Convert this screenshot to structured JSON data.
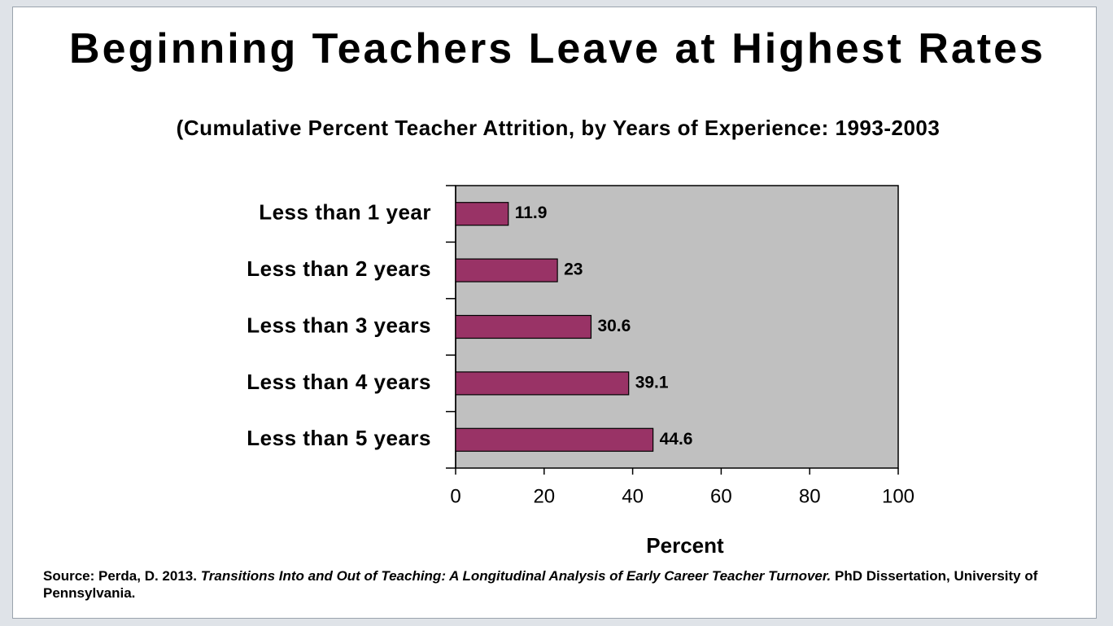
{
  "chart_data": {
    "type": "bar",
    "orientation": "horizontal",
    "title": "Beginning Teachers Leave at Highest Rates",
    "subtitle": "(Cumulative Percent Teacher Attrition, by Years of Experience: 1993-2003",
    "categories": [
      "Less than 1 year",
      "Less than 2 years",
      "Less than 3 years",
      "Less than 4 years",
      "Less than 5 years"
    ],
    "values": [
      11.9,
      23,
      30.6,
      39.1,
      44.6
    ],
    "color": "#993366",
    "plot_background": "#c0c0c0",
    "xlabel": "Percent",
    "xlim": [
      0,
      100
    ],
    "xticks": [
      0,
      20,
      40,
      60,
      80,
      100
    ],
    "source": [
      "Source: Perda, D. 2013. ",
      "Transitions Into and Out of Teaching: A Longitudinal Analysis of Early Career Teacher Turnover.",
      " PhD Dissertation, University of Pennsylvania."
    ]
  }
}
